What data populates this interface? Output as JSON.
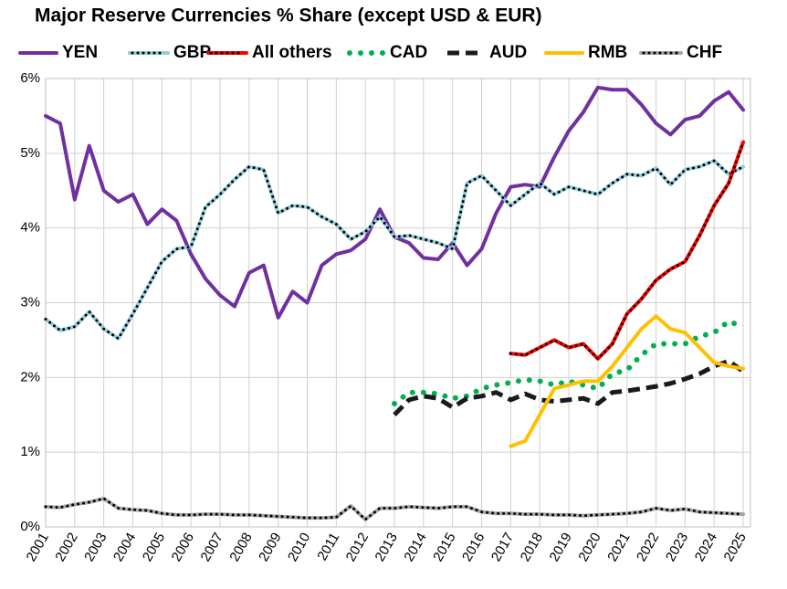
{
  "chart_data": {
    "type": "line",
    "title": "Major Reserve Currencies % Share (except USD & EUR)",
    "x": [
      2001,
      2001.5,
      2002,
      2002.5,
      2003,
      2003.5,
      2004,
      2004.5,
      2005,
      2005.5,
      2006,
      2006.5,
      2007,
      2007.5,
      2008,
      2008.5,
      2009,
      2009.5,
      2010,
      2010.5,
      2011,
      2011.5,
      2012,
      2012.5,
      2013,
      2013.5,
      2014,
      2014.5,
      2015,
      2015.5,
      2016,
      2016.5,
      2017,
      2017.5,
      2018,
      2018.5,
      2019,
      2019.5,
      2020,
      2020.5,
      2021,
      2021.5,
      2022,
      2022.5,
      2023,
      2023.5,
      2024,
      2024.5,
      2025
    ],
    "xlim": [
      2001,
      2025.25
    ],
    "xticks": [
      2001,
      2002,
      2003,
      2004,
      2005,
      2006,
      2007,
      2008,
      2009,
      2010,
      2011,
      2012,
      2013,
      2014,
      2015,
      2016,
      2017,
      2018,
      2019,
      2020,
      2021,
      2022,
      2023,
      2024,
      2025
    ],
    "ylim": [
      0,
      6
    ],
    "yticks": [
      {
        "value": 0,
        "label": "0%"
      },
      {
        "value": 1,
        "label": "1%"
      },
      {
        "value": 2,
        "label": "2%"
      },
      {
        "value": 3,
        "label": "3%"
      },
      {
        "value": 4,
        "label": "4%"
      },
      {
        "value": 5,
        "label": "5%"
      },
      {
        "value": 6,
        "label": "6%"
      }
    ],
    "grid": true,
    "legend": "top",
    "series": [
      {
        "name": "YEN",
        "color": "#7030a0",
        "line_style": "solid",
        "markers": false,
        "values": [
          5.5,
          5.4,
          4.38,
          5.1,
          4.5,
          4.35,
          4.45,
          4.05,
          4.25,
          4.1,
          3.65,
          3.32,
          3.1,
          2.95,
          3.4,
          3.5,
          2.8,
          3.15,
          3.0,
          3.5,
          3.65,
          3.7,
          3.85,
          4.25,
          3.88,
          3.8,
          3.6,
          3.58,
          3.8,
          3.5,
          3.72,
          4.2,
          4.55,
          4.58,
          4.55,
          4.95,
          5.3,
          5.55,
          5.88,
          5.85,
          5.85,
          5.65,
          5.4,
          5.25,
          5.45,
          5.5,
          5.7,
          5.82,
          5.58
        ]
      },
      {
        "name": "GBP",
        "color": "#92cddc",
        "line_style": "solid",
        "markers": true,
        "values": [
          2.78,
          2.63,
          2.68,
          2.88,
          2.65,
          2.52,
          2.85,
          3.2,
          3.55,
          3.72,
          3.75,
          4.28,
          4.45,
          4.65,
          4.82,
          4.78,
          4.2,
          4.3,
          4.28,
          4.15,
          4.05,
          3.85,
          3.95,
          4.15,
          3.88,
          3.9,
          3.85,
          3.8,
          3.72,
          4.6,
          4.7,
          4.5,
          4.3,
          4.45,
          4.6,
          4.45,
          4.55,
          4.5,
          4.45,
          4.6,
          4.72,
          4.7,
          4.8,
          4.58,
          4.78,
          4.82,
          4.9,
          4.72,
          4.82
        ]
      },
      {
        "name": "All others",
        "color": "#ff0000",
        "line_style": "solid",
        "markers": true,
        "values": [
          null,
          null,
          null,
          null,
          null,
          null,
          null,
          null,
          null,
          null,
          null,
          null,
          null,
          null,
          null,
          null,
          null,
          null,
          null,
          null,
          null,
          null,
          null,
          null,
          null,
          null,
          null,
          null,
          null,
          null,
          null,
          null,
          2.32,
          2.3,
          2.4,
          2.5,
          2.4,
          2.45,
          2.25,
          2.45,
          2.85,
          3.05,
          3.3,
          3.45,
          3.55,
          3.9,
          4.3,
          4.6,
          5.15
        ]
      },
      {
        "name": "CAD",
        "color": "#00b050",
        "line_style": "dotted",
        "markers": false,
        "values": [
          null,
          null,
          null,
          null,
          null,
          null,
          null,
          null,
          null,
          null,
          null,
          null,
          null,
          null,
          null,
          null,
          null,
          null,
          null,
          null,
          null,
          null,
          null,
          null,
          1.65,
          1.8,
          1.8,
          1.78,
          1.72,
          1.75,
          1.85,
          1.9,
          1.93,
          1.97,
          1.95,
          1.9,
          1.95,
          1.9,
          1.85,
          2.05,
          2.1,
          2.3,
          2.45,
          2.45,
          2.45,
          2.55,
          2.6,
          2.75,
          2.68
        ]
      },
      {
        "name": "AUD",
        "color": "#1a1a1a",
        "line_style": "dashed",
        "markers": false,
        "values": [
          null,
          null,
          null,
          null,
          null,
          null,
          null,
          null,
          null,
          null,
          null,
          null,
          null,
          null,
          null,
          null,
          null,
          null,
          null,
          null,
          null,
          null,
          null,
          null,
          1.5,
          1.7,
          1.75,
          1.72,
          1.6,
          1.72,
          1.75,
          1.8,
          1.7,
          1.78,
          1.7,
          1.68,
          1.7,
          1.72,
          1.65,
          1.8,
          1.82,
          1.85,
          1.88,
          1.92,
          1.98,
          2.05,
          2.15,
          2.22,
          2.08
        ]
      },
      {
        "name": "RMB",
        "color": "#ffc000",
        "line_style": "solid",
        "markers": false,
        "values": [
          null,
          null,
          null,
          null,
          null,
          null,
          null,
          null,
          null,
          null,
          null,
          null,
          null,
          null,
          null,
          null,
          null,
          null,
          null,
          null,
          null,
          null,
          null,
          null,
          null,
          null,
          null,
          null,
          null,
          null,
          null,
          null,
          1.08,
          1.15,
          1.5,
          1.85,
          1.9,
          1.95,
          1.95,
          2.15,
          2.4,
          2.65,
          2.82,
          2.65,
          2.6,
          2.4,
          2.2,
          2.15,
          2.12
        ]
      },
      {
        "name": "CHF",
        "color": "#a6a6a6",
        "line_style": "solid",
        "markers": true,
        "values": [
          0.27,
          0.26,
          0.3,
          0.33,
          0.38,
          0.25,
          0.23,
          0.22,
          0.18,
          0.16,
          0.16,
          0.17,
          0.17,
          0.16,
          0.16,
          0.15,
          0.14,
          0.13,
          0.12,
          0.12,
          0.13,
          0.28,
          0.1,
          0.25,
          0.25,
          0.27,
          0.26,
          0.25,
          0.27,
          0.27,
          0.2,
          0.18,
          0.18,
          0.17,
          0.17,
          0.16,
          0.16,
          0.15,
          0.16,
          0.17,
          0.18,
          0.2,
          0.25,
          0.22,
          0.24,
          0.2,
          0.19,
          0.18,
          0.17
        ]
      }
    ]
  }
}
